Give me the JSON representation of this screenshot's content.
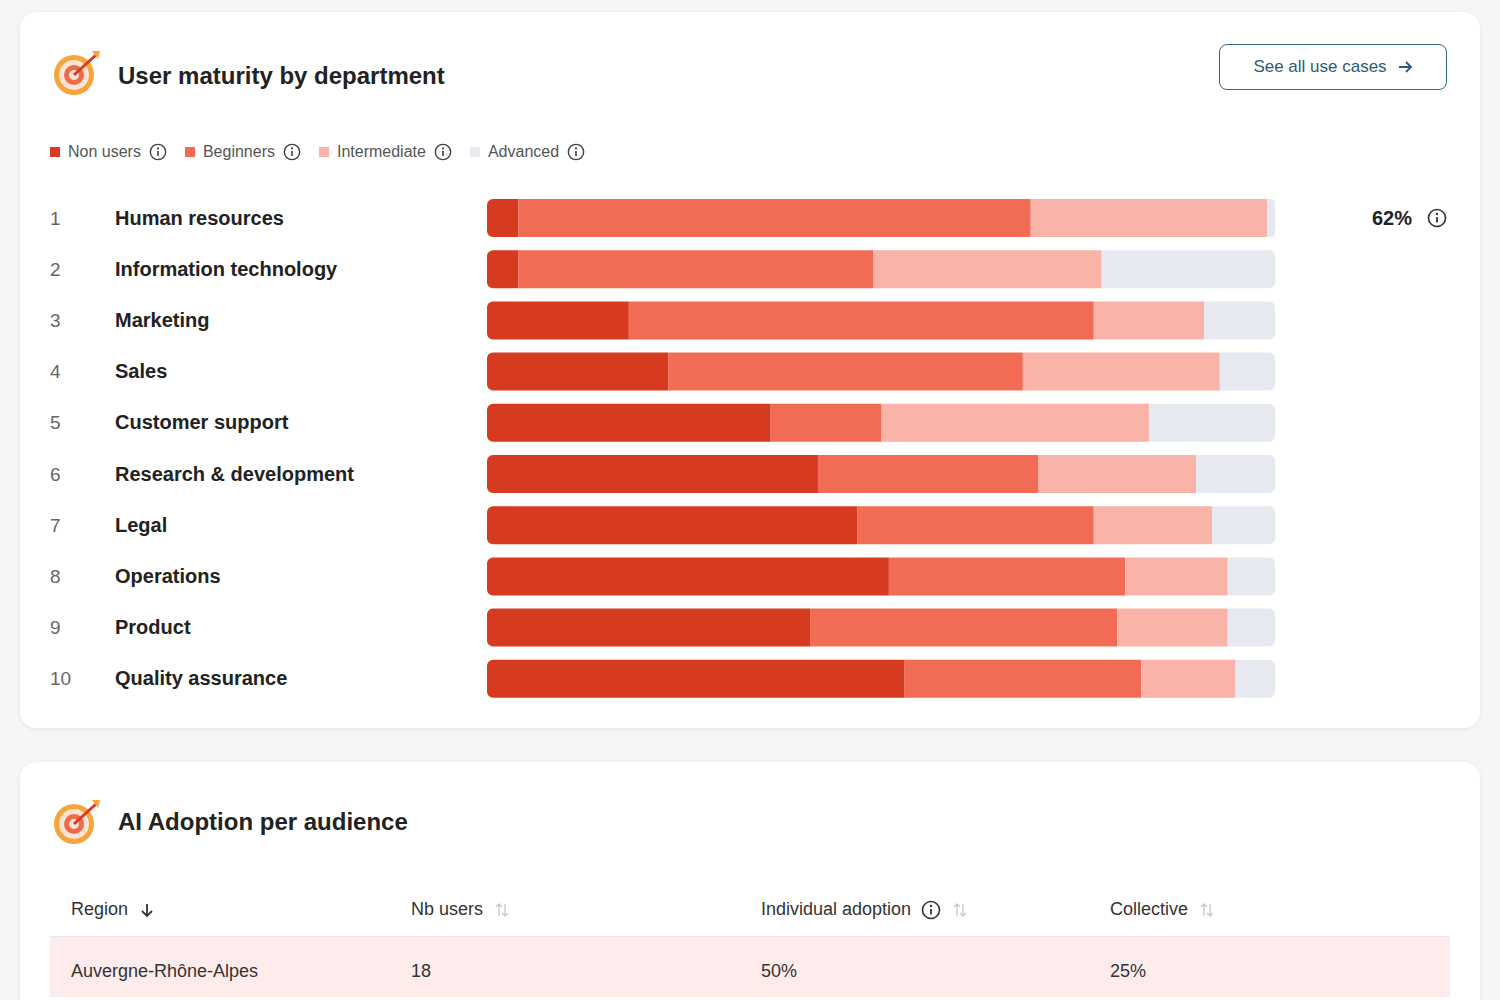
{
  "chart_data": {
    "type": "bar",
    "title": "User maturity by department",
    "orientation": "horizontal",
    "stacked": true,
    "tick_labels": "y",
    "legend": "top",
    "categories": [
      "Human resources",
      "Information technology",
      "Marketing",
      "Sales",
      "Customer support",
      "Research & development",
      "Legal",
      "Operations",
      "Product",
      "Quality assurance"
    ],
    "ranks": [
      1,
      2,
      3,
      4,
      5,
      6,
      7,
      8,
      9,
      10
    ],
    "xlim": [
      0,
      100
    ],
    "series": [
      {
        "name": "Non users",
        "color": "#d63a1f",
        "values": [
          4,
          4,
          18,
          23,
          36,
          42,
          47,
          51,
          41,
          53
        ]
      },
      {
        "name": "Beginners",
        "color": "#f26b55",
        "values": [
          65,
          45,
          59,
          45,
          14,
          28,
          30,
          30,
          39,
          30
        ]
      },
      {
        "name": "Intermediate",
        "color": "#f9b3a8",
        "values": [
          30,
          29,
          14,
          25,
          34,
          20,
          15,
          13,
          14,
          12
        ]
      },
      {
        "name": "Advanced",
        "color": "#e6eaf0",
        "values": [
          1,
          22,
          9,
          7,
          16,
          10,
          8,
          6,
          6,
          5
        ]
      }
    ],
    "annotations": [
      {
        "category": "Human resources",
        "text": "62%"
      }
    ]
  },
  "button": {
    "text": "See all use cases"
  },
  "table": {
    "title": "AI Adoption per audience",
    "columns": [
      "Region",
      "Nb users",
      "Individual adoption",
      "Collective"
    ],
    "rows": [
      [
        "Auvergne-Rhône-Alpes",
        "18",
        "50%",
        "25%"
      ]
    ]
  }
}
